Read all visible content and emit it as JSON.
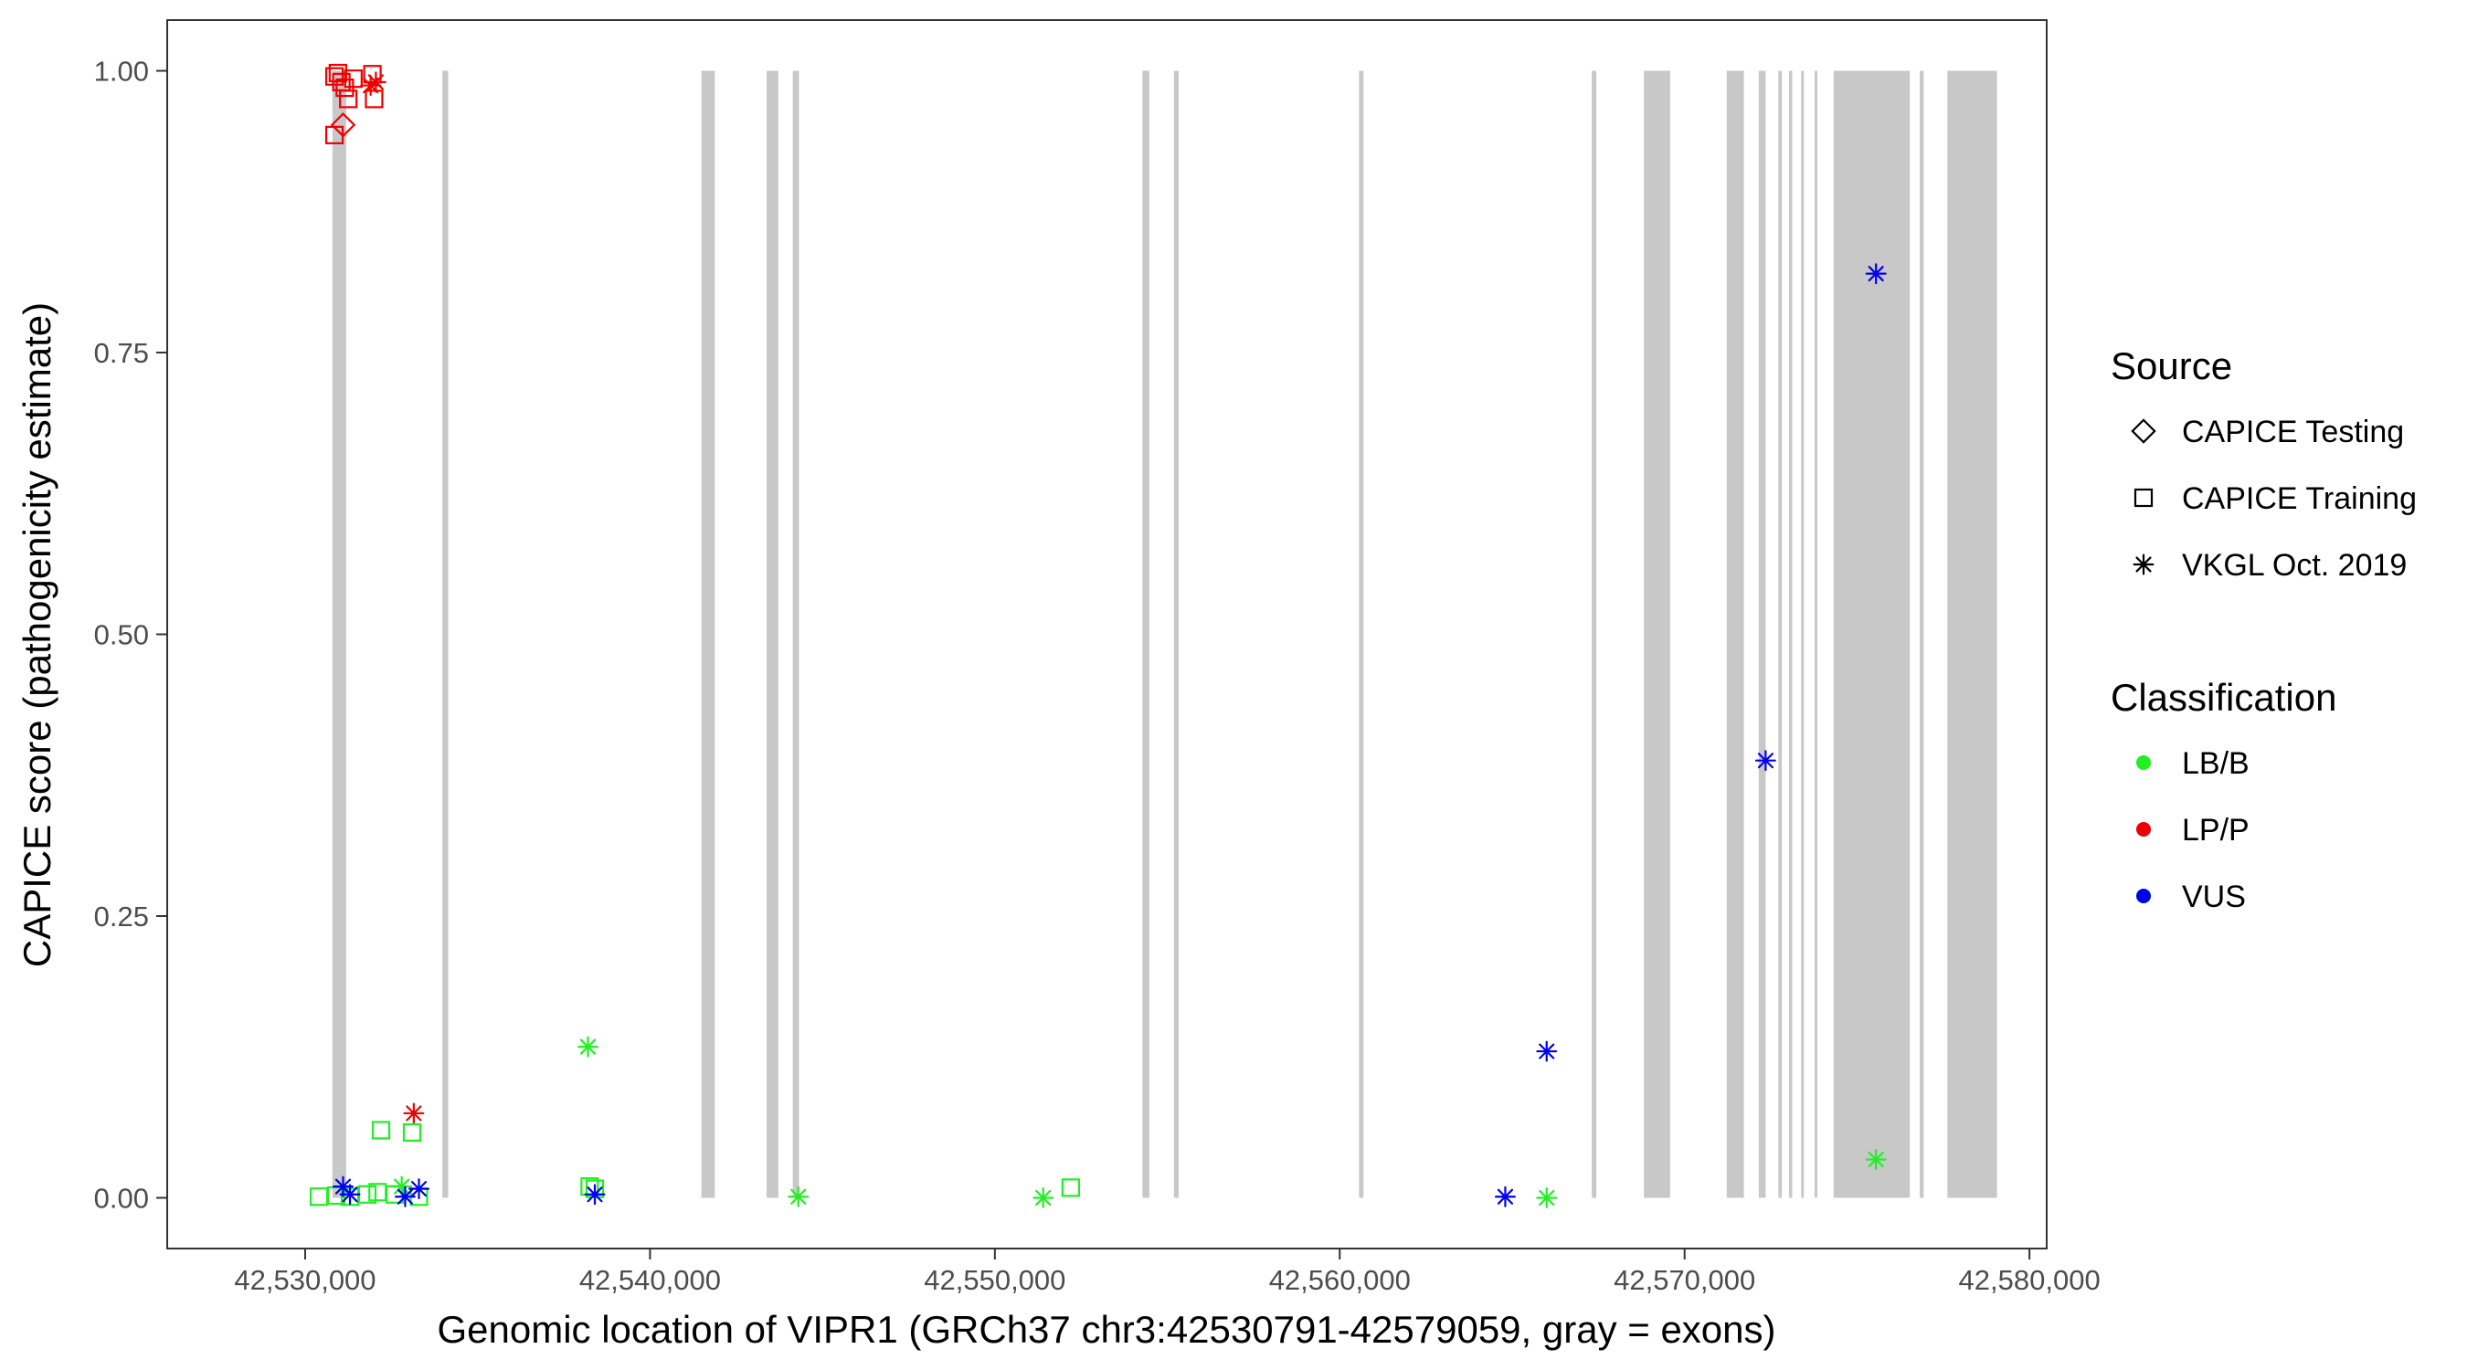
{
  "chart_data": {
    "type": "scatter",
    "xlabel": "Genomic location of VIPR1 (GRCh37 chr3:42530791-42579059, gray = exons)",
    "ylabel": "CAPICE score (pathogenicity estimate)",
    "xlim": [
      42526000,
      42580500
    ],
    "ylim": [
      -0.045,
      1.045
    ],
    "x_ticks": [
      42530000,
      42540000,
      42550000,
      42560000,
      42570000,
      42580000
    ],
    "x_tick_labels": [
      "42,530,000",
      "42,540,000",
      "42,550,000",
      "42,560,000",
      "42,570,000",
      "42,580,000"
    ],
    "y_ticks": [
      0,
      0.25,
      0.5,
      0.75,
      1
    ],
    "y_tick_labels": [
      "0.00",
      "0.25",
      "0.50",
      "0.75",
      "1.00"
    ],
    "grid": false,
    "exons": [
      [
        42530791,
        42531190
      ],
      [
        42533980,
        42534150
      ],
      [
        42541490,
        42541880
      ],
      [
        42543380,
        42543720
      ],
      [
        42544140,
        42544320
      ],
      [
        42554280,
        42554480
      ],
      [
        42555190,
        42555330
      ],
      [
        42560560,
        42560690
      ],
      [
        42567310,
        42567440
      ],
      [
        42568820,
        42569580
      ],
      [
        42571220,
        42571720
      ],
      [
        42572150,
        42572350
      ],
      [
        42572720,
        42572820
      ],
      [
        42573030,
        42573120
      ],
      [
        42573380,
        42573450
      ],
      [
        42573770,
        42573850
      ],
      [
        42574320,
        42576530
      ],
      [
        42576820,
        42576930
      ],
      [
        42577620,
        42579059
      ]
    ],
    "exon_color": "#c8c8c8",
    "legend": {
      "position": "right",
      "source_title": "Source",
      "source_items": [
        {
          "label": "CAPICE Testing",
          "shape": "diamond"
        },
        {
          "label": "CAPICE Training",
          "shape": "square"
        },
        {
          "label": "VKGL Oct. 2019",
          "shape": "asterisk"
        }
      ],
      "class_title": "Classification",
      "class_items": [
        {
          "label": "LB/B",
          "color": "#22ee22"
        },
        {
          "label": "LP/P",
          "color": "#ee0000"
        },
        {
          "label": "VUS",
          "color": "#0000ee"
        }
      ]
    },
    "points": [
      {
        "x": 42530850,
        "y": 0.995,
        "shape": "square",
        "cls": "LP/P"
      },
      {
        "x": 42530950,
        "y": 0.998,
        "shape": "square",
        "cls": "LP/P"
      },
      {
        "x": 42531050,
        "y": 0.99,
        "shape": "square",
        "cls": "LP/P"
      },
      {
        "x": 42531150,
        "y": 0.985,
        "shape": "square",
        "cls": "LP/P"
      },
      {
        "x": 42531250,
        "y": 0.975,
        "shape": "square",
        "cls": "LP/P"
      },
      {
        "x": 42531400,
        "y": 0.993,
        "shape": "square",
        "cls": "LP/P"
      },
      {
        "x": 42531950,
        "y": 0.997,
        "shape": "square",
        "cls": "LP/P"
      },
      {
        "x": 42532000,
        "y": 0.975,
        "shape": "square",
        "cls": "LP/P"
      },
      {
        "x": 42530850,
        "y": 0.943,
        "shape": "square",
        "cls": "LP/P"
      },
      {
        "x": 42531100,
        "y": 0.952,
        "shape": "diamond",
        "cls": "LP/P"
      },
      {
        "x": 42531900,
        "y": 0.987,
        "shape": "asterisk",
        "cls": "LP/P"
      },
      {
        "x": 42532050,
        "y": 0.99,
        "shape": "asterisk",
        "cls": "LP/P"
      },
      {
        "x": 42533150,
        "y": 0.075,
        "shape": "asterisk",
        "cls": "LP/P"
      },
      {
        "x": 42530400,
        "y": 0.001,
        "shape": "square",
        "cls": "LB/B"
      },
      {
        "x": 42530900,
        "y": 0.002,
        "shape": "square",
        "cls": "LB/B"
      },
      {
        "x": 42531300,
        "y": 0.001,
        "shape": "square",
        "cls": "LB/B"
      },
      {
        "x": 42531800,
        "y": 0.003,
        "shape": "square",
        "cls": "LB/B"
      },
      {
        "x": 42532100,
        "y": 0.005,
        "shape": "square",
        "cls": "LB/B"
      },
      {
        "x": 42532600,
        "y": 0.003,
        "shape": "square",
        "cls": "LB/B"
      },
      {
        "x": 42533300,
        "y": 0.001,
        "shape": "square",
        "cls": "LB/B"
      },
      {
        "x": 42532200,
        "y": 0.06,
        "shape": "square",
        "cls": "LB/B"
      },
      {
        "x": 42533100,
        "y": 0.058,
        "shape": "square",
        "cls": "LB/B"
      },
      {
        "x": 42538250,
        "y": 0.01,
        "shape": "square",
        "cls": "LB/B"
      },
      {
        "x": 42538400,
        "y": 0.008,
        "shape": "square",
        "cls": "LB/B"
      },
      {
        "x": 42552200,
        "y": 0.009,
        "shape": "square",
        "cls": "LB/B"
      },
      {
        "x": 42532800,
        "y": 0.01,
        "shape": "asterisk",
        "cls": "LB/B"
      },
      {
        "x": 42538200,
        "y": 0.134,
        "shape": "asterisk",
        "cls": "LB/B"
      },
      {
        "x": 42544300,
        "y": 0.001,
        "shape": "asterisk",
        "cls": "LB/B"
      },
      {
        "x": 42551400,
        "y": 0.0,
        "shape": "asterisk",
        "cls": "LB/B"
      },
      {
        "x": 42566000,
        "y": 0.0,
        "shape": "asterisk",
        "cls": "LB/B"
      },
      {
        "x": 42575550,
        "y": 0.034,
        "shape": "asterisk",
        "cls": "LB/B"
      },
      {
        "x": 42531100,
        "y": 0.01,
        "shape": "asterisk",
        "cls": "VUS"
      },
      {
        "x": 42531300,
        "y": 0.003,
        "shape": "asterisk",
        "cls": "VUS"
      },
      {
        "x": 42532900,
        "y": 0.001,
        "shape": "asterisk",
        "cls": "VUS"
      },
      {
        "x": 42533300,
        "y": 0.008,
        "shape": "asterisk",
        "cls": "VUS"
      },
      {
        "x": 42538400,
        "y": 0.003,
        "shape": "asterisk",
        "cls": "VUS"
      },
      {
        "x": 42564800,
        "y": 0.001,
        "shape": "asterisk",
        "cls": "VUS"
      },
      {
        "x": 42566000,
        "y": 0.13,
        "shape": "asterisk",
        "cls": "VUS"
      },
      {
        "x": 42572350,
        "y": 0.388,
        "shape": "asterisk",
        "cls": "VUS"
      },
      {
        "x": 42575550,
        "y": 0.82,
        "shape": "asterisk",
        "cls": "VUS"
      }
    ]
  }
}
